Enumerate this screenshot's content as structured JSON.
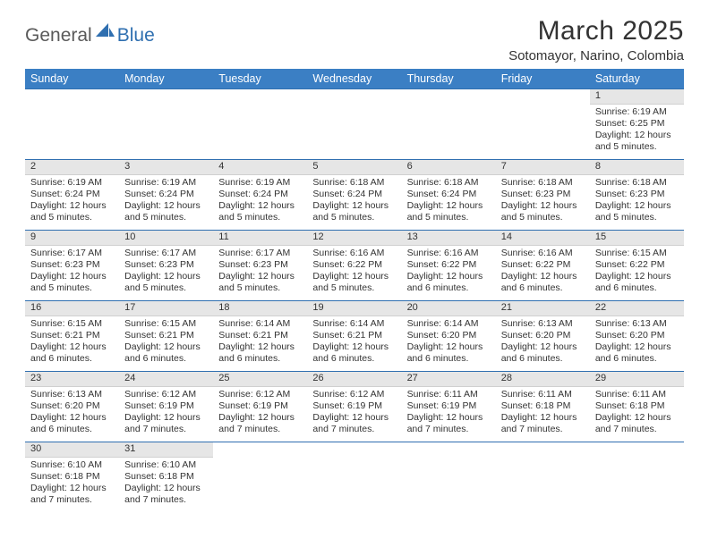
{
  "logo": {
    "text1": "General",
    "text2": "Blue",
    "sail_color": "#2f6fb0"
  },
  "header": {
    "month_title": "March 2025",
    "location": "Sotomayor, Narino, Colombia"
  },
  "weekdays": [
    "Sunday",
    "Monday",
    "Tuesday",
    "Wednesday",
    "Thursday",
    "Friday",
    "Saturday"
  ],
  "colors": {
    "header_bg": "#3b7fc4",
    "row_divider": "#2f6fb0",
    "daynum_bg": "#e6e6e6",
    "text": "#333333"
  },
  "weeks": [
    [
      {
        "blank": true
      },
      {
        "blank": true
      },
      {
        "blank": true
      },
      {
        "blank": true
      },
      {
        "blank": true
      },
      {
        "blank": true
      },
      {
        "day": "1",
        "sunrise": "6:19 AM",
        "sunset": "6:25 PM",
        "daylight": "12 hours and 5 minutes."
      }
    ],
    [
      {
        "day": "2",
        "sunrise": "6:19 AM",
        "sunset": "6:24 PM",
        "daylight": "12 hours and 5 minutes."
      },
      {
        "day": "3",
        "sunrise": "6:19 AM",
        "sunset": "6:24 PM",
        "daylight": "12 hours and 5 minutes."
      },
      {
        "day": "4",
        "sunrise": "6:19 AM",
        "sunset": "6:24 PM",
        "daylight": "12 hours and 5 minutes."
      },
      {
        "day": "5",
        "sunrise": "6:18 AM",
        "sunset": "6:24 PM",
        "daylight": "12 hours and 5 minutes."
      },
      {
        "day": "6",
        "sunrise": "6:18 AM",
        "sunset": "6:24 PM",
        "daylight": "12 hours and 5 minutes."
      },
      {
        "day": "7",
        "sunrise": "6:18 AM",
        "sunset": "6:23 PM",
        "daylight": "12 hours and 5 minutes."
      },
      {
        "day": "8",
        "sunrise": "6:18 AM",
        "sunset": "6:23 PM",
        "daylight": "12 hours and 5 minutes."
      }
    ],
    [
      {
        "day": "9",
        "sunrise": "6:17 AM",
        "sunset": "6:23 PM",
        "daylight": "12 hours and 5 minutes."
      },
      {
        "day": "10",
        "sunrise": "6:17 AM",
        "sunset": "6:23 PM",
        "daylight": "12 hours and 5 minutes."
      },
      {
        "day": "11",
        "sunrise": "6:17 AM",
        "sunset": "6:23 PM",
        "daylight": "12 hours and 5 minutes."
      },
      {
        "day": "12",
        "sunrise": "6:16 AM",
        "sunset": "6:22 PM",
        "daylight": "12 hours and 5 minutes."
      },
      {
        "day": "13",
        "sunrise": "6:16 AM",
        "sunset": "6:22 PM",
        "daylight": "12 hours and 6 minutes."
      },
      {
        "day": "14",
        "sunrise": "6:16 AM",
        "sunset": "6:22 PM",
        "daylight": "12 hours and 6 minutes."
      },
      {
        "day": "15",
        "sunrise": "6:15 AM",
        "sunset": "6:22 PM",
        "daylight": "12 hours and 6 minutes."
      }
    ],
    [
      {
        "day": "16",
        "sunrise": "6:15 AM",
        "sunset": "6:21 PM",
        "daylight": "12 hours and 6 minutes."
      },
      {
        "day": "17",
        "sunrise": "6:15 AM",
        "sunset": "6:21 PM",
        "daylight": "12 hours and 6 minutes."
      },
      {
        "day": "18",
        "sunrise": "6:14 AM",
        "sunset": "6:21 PM",
        "daylight": "12 hours and 6 minutes."
      },
      {
        "day": "19",
        "sunrise": "6:14 AM",
        "sunset": "6:21 PM",
        "daylight": "12 hours and 6 minutes."
      },
      {
        "day": "20",
        "sunrise": "6:14 AM",
        "sunset": "6:20 PM",
        "daylight": "12 hours and 6 minutes."
      },
      {
        "day": "21",
        "sunrise": "6:13 AM",
        "sunset": "6:20 PM",
        "daylight": "12 hours and 6 minutes."
      },
      {
        "day": "22",
        "sunrise": "6:13 AM",
        "sunset": "6:20 PM",
        "daylight": "12 hours and 6 minutes."
      }
    ],
    [
      {
        "day": "23",
        "sunrise": "6:13 AM",
        "sunset": "6:20 PM",
        "daylight": "12 hours and 6 minutes."
      },
      {
        "day": "24",
        "sunrise": "6:12 AM",
        "sunset": "6:19 PM",
        "daylight": "12 hours and 7 minutes."
      },
      {
        "day": "25",
        "sunrise": "6:12 AM",
        "sunset": "6:19 PM",
        "daylight": "12 hours and 7 minutes."
      },
      {
        "day": "26",
        "sunrise": "6:12 AM",
        "sunset": "6:19 PM",
        "daylight": "12 hours and 7 minutes."
      },
      {
        "day": "27",
        "sunrise": "6:11 AM",
        "sunset": "6:19 PM",
        "daylight": "12 hours and 7 minutes."
      },
      {
        "day": "28",
        "sunrise": "6:11 AM",
        "sunset": "6:18 PM",
        "daylight": "12 hours and 7 minutes."
      },
      {
        "day": "29",
        "sunrise": "6:11 AM",
        "sunset": "6:18 PM",
        "daylight": "12 hours and 7 minutes."
      }
    ],
    [
      {
        "day": "30",
        "sunrise": "6:10 AM",
        "sunset": "6:18 PM",
        "daylight": "12 hours and 7 minutes."
      },
      {
        "day": "31",
        "sunrise": "6:10 AM",
        "sunset": "6:18 PM",
        "daylight": "12 hours and 7 minutes."
      },
      {
        "blank": true
      },
      {
        "blank": true
      },
      {
        "blank": true
      },
      {
        "blank": true
      },
      {
        "blank": true
      }
    ]
  ],
  "labels": {
    "sunrise": "Sunrise:",
    "sunset": "Sunset:",
    "daylight": "Daylight:"
  }
}
